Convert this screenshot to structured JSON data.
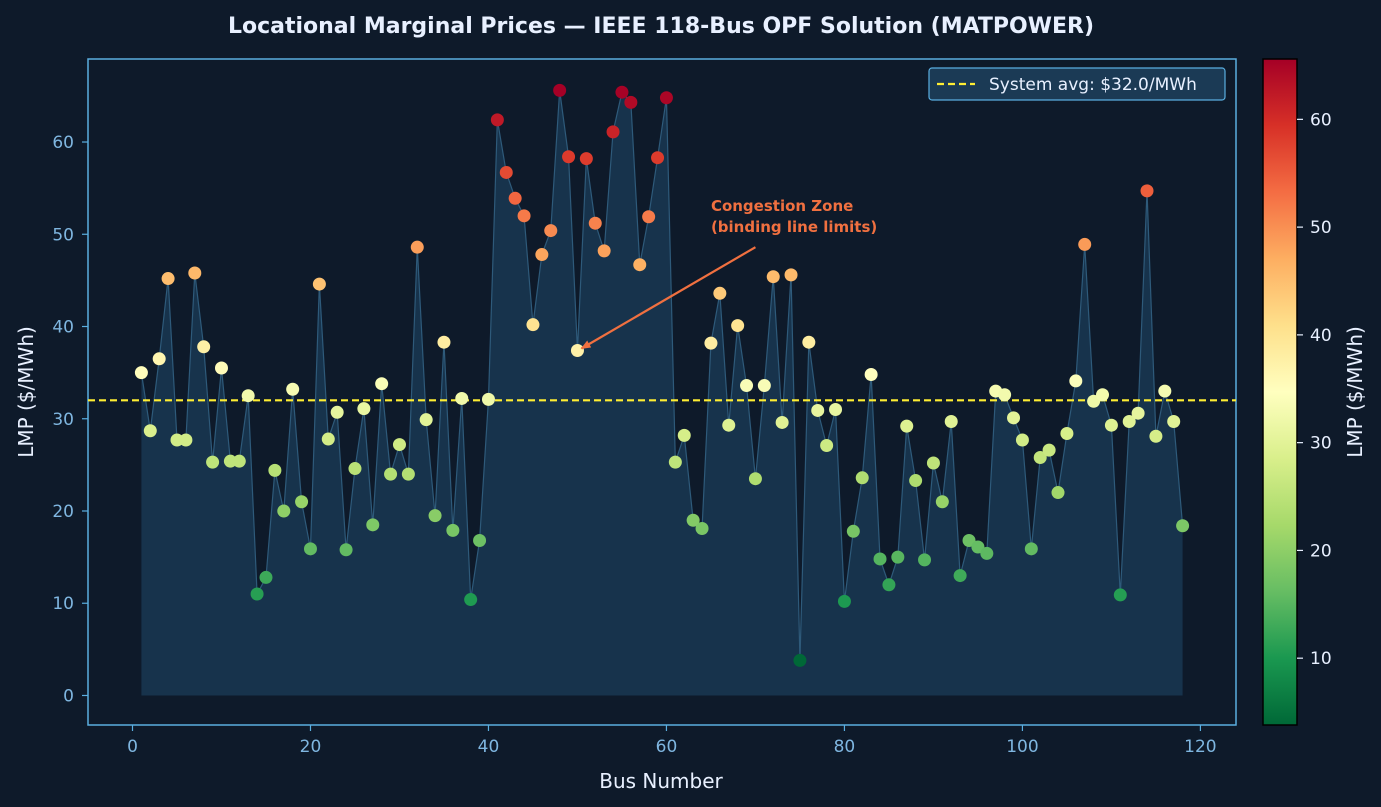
{
  "chart_data": {
    "type": "scatter",
    "title": "Locational Marginal Prices — IEEE 118-Bus OPF Solution (MATPOWER)",
    "xlabel": "Bus Number",
    "ylabel": "LMP ($/MWh)",
    "xlim": [
      -5,
      124
    ],
    "ylim": [
      -3.2,
      69
    ],
    "xticks": [
      0,
      20,
      40,
      60,
      80,
      100,
      120
    ],
    "yticks": [
      0,
      10,
      20,
      30,
      40,
      50,
      60
    ],
    "grid": false,
    "legend": {
      "label": "System avg: $32.0/MWh",
      "position": "top-right"
    },
    "reference_line": {
      "y": 32.0,
      "color": "#ffee33",
      "style": "dashed"
    },
    "colorbar": {
      "label": "LMP ($/MWh)",
      "ticks": [
        10,
        20,
        30,
        40,
        50,
        60
      ],
      "range": [
        3.8,
        65.6
      ],
      "colormap": "RdYlGn_r"
    },
    "annotation": {
      "lines": [
        "Congestion Zone",
        "(binding line limits)"
      ],
      "text_at": [
        65,
        51
      ],
      "arrow_to": [
        50,
        37.4
      ],
      "color": "#f07040"
    },
    "x": [
      1,
      2,
      3,
      4,
      5,
      6,
      7,
      8,
      9,
      10,
      11,
      12,
      13,
      14,
      15,
      16,
      17,
      18,
      19,
      20,
      21,
      22,
      23,
      24,
      25,
      26,
      27,
      28,
      29,
      30,
      31,
      32,
      33,
      34,
      35,
      36,
      37,
      38,
      39,
      40,
      41,
      42,
      43,
      44,
      45,
      46,
      47,
      48,
      49,
      50,
      51,
      52,
      53,
      54,
      55,
      56,
      57,
      58,
      59,
      60,
      61,
      62,
      63,
      64,
      65,
      66,
      67,
      68,
      69,
      70,
      71,
      72,
      73,
      74,
      75,
      76,
      77,
      78,
      79,
      80,
      81,
      82,
      83,
      84,
      85,
      86,
      87,
      88,
      89,
      90,
      91,
      92,
      93,
      94,
      95,
      96,
      97,
      98,
      99,
      100,
      101,
      102,
      103,
      104,
      105,
      106,
      107,
      108,
      109,
      110,
      111,
      112,
      113,
      114,
      115,
      116,
      117,
      118
    ],
    "y": [
      35.0,
      28.7,
      36.5,
      45.2,
      27.7,
      27.7,
      45.8,
      37.8,
      25.3,
      35.5,
      25.4,
      25.4,
      32.5,
      11.0,
      12.8,
      24.4,
      20.0,
      33.2,
      21.0,
      15.9,
      44.6,
      27.8,
      30.7,
      15.8,
      24.6,
      31.1,
      18.5,
      33.8,
      24.0,
      27.2,
      24.0,
      48.6,
      29.9,
      19.5,
      38.3,
      17.9,
      32.2,
      10.4,
      16.8,
      32.1,
      62.4,
      56.7,
      53.9,
      52.0,
      40.2,
      47.8,
      50.4,
      65.6,
      58.4,
      37.4,
      58.2,
      51.2,
      48.2,
      61.1,
      65.4,
      64.3,
      46.7,
      51.9,
      58.3,
      64.8,
      25.3,
      28.2,
      19.0,
      18.1,
      38.2,
      43.6,
      29.3,
      40.1,
      33.6,
      23.5,
      33.6,
      45.4,
      29.6,
      45.6,
      3.8,
      38.3,
      30.9,
      27.1,
      31.0,
      10.2,
      17.8,
      23.6,
      34.8,
      14.8,
      12.0,
      15.0,
      29.2,
      23.3,
      14.7,
      25.2,
      21.0,
      29.7,
      13.0,
      16.8,
      16.1,
      15.4,
      33.0,
      32.6,
      30.1,
      27.7,
      15.9,
      25.8,
      26.6,
      22.0,
      28.4,
      34.1,
      48.9,
      31.9,
      32.6,
      29.3,
      10.9,
      29.7,
      30.6,
      54.7,
      28.1,
      33.0,
      29.7,
      18.4
    ]
  }
}
